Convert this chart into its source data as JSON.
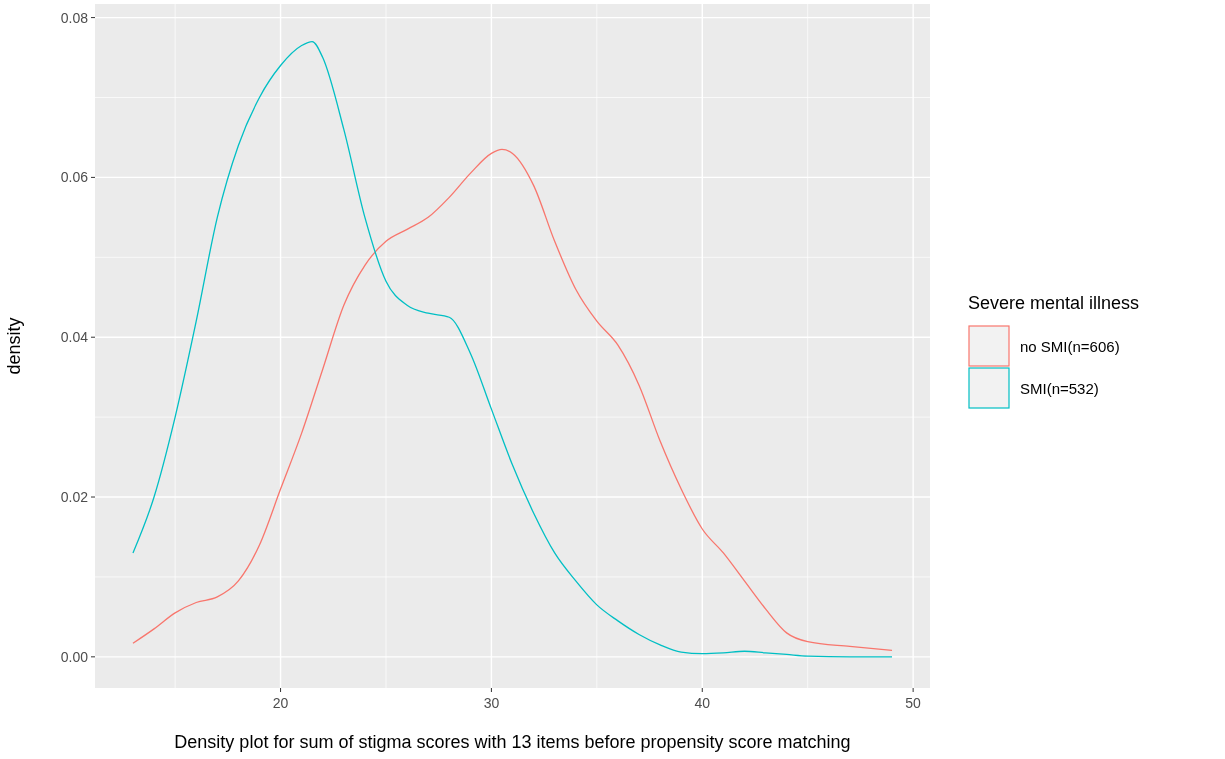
{
  "chart_data": {
    "type": "line",
    "xlabel": "Density plot for sum of stigma scores with 13 items before propensity score matching",
    "ylabel": "density",
    "legend_title": "Severe mental illness",
    "legend": "right",
    "grid": true,
    "line_style": "solid",
    "xlim": [
      11.2,
      50.8
    ],
    "xticks": [
      20,
      30,
      40,
      50
    ],
    "ylim": [
      -0.0039,
      0.0817
    ],
    "yticks": [
      {
        "value": 0,
        "label": "0.00"
      },
      {
        "value": 0.02,
        "label": "0.02"
      },
      {
        "value": 0.04,
        "label": "0.04"
      },
      {
        "value": 0.06,
        "label": "0.06"
      },
      {
        "value": 0.08,
        "label": "0.08"
      }
    ],
    "series": [
      {
        "name": "no SMI(n=606)",
        "color": "#f8766d",
        "x": [
          13,
          14,
          15,
          16,
          17,
          18,
          19,
          20,
          21,
          22,
          23,
          24,
          25,
          26,
          27,
          28,
          29,
          30,
          30.5,
          31,
          32,
          33,
          34,
          35,
          36,
          37,
          38,
          39,
          40,
          41,
          42,
          43,
          44,
          45,
          47,
          49
        ],
        "values": [
          0.0017,
          0.0035,
          0.0055,
          0.0068,
          0.0075,
          0.0095,
          0.014,
          0.021,
          0.028,
          0.036,
          0.044,
          0.049,
          0.052,
          0.0535,
          0.055,
          0.0575,
          0.0605,
          0.063,
          0.0635,
          0.063,
          0.059,
          0.052,
          0.046,
          0.042,
          0.039,
          0.034,
          0.027,
          0.021,
          0.016,
          0.013,
          0.0095,
          0.006,
          0.003,
          0.0019,
          0.0013,
          0.0008
        ]
      },
      {
        "name": "SMI(n=532)",
        "color": "#00bfc4",
        "x": [
          13,
          14,
          15,
          16,
          17,
          18,
          19,
          20,
          21,
          21.5,
          22,
          23,
          24,
          25,
          26,
          27,
          28,
          29,
          30,
          31,
          32,
          33,
          34,
          35,
          36,
          37,
          38,
          39,
          40,
          41,
          42,
          43,
          44,
          45,
          47,
          49
        ],
        "values": [
          0.013,
          0.02,
          0.03,
          0.042,
          0.055,
          0.064,
          0.07,
          0.074,
          0.0765,
          0.077,
          0.075,
          0.066,
          0.055,
          0.047,
          0.044,
          0.043,
          0.0425,
          0.038,
          0.031,
          0.024,
          0.018,
          0.013,
          0.0095,
          0.0065,
          0.0045,
          0.0028,
          0.0015,
          0.0006,
          0.0004,
          0.0005,
          0.0007,
          0.0005,
          0.0003,
          0.0001,
          0,
          0
        ]
      }
    ]
  }
}
